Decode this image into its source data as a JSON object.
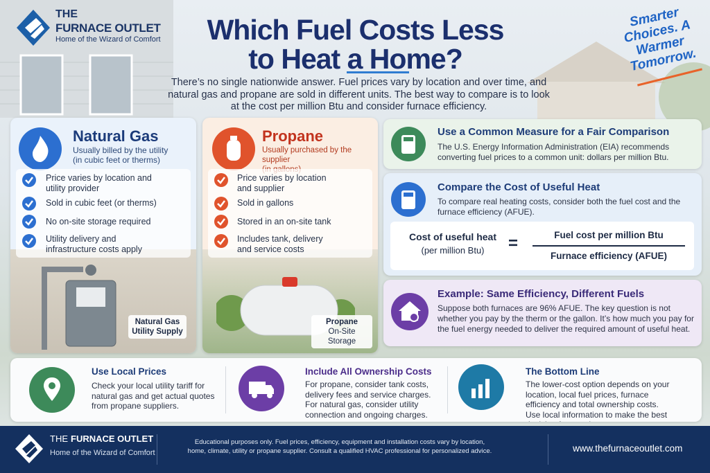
{
  "brand": {
    "the": "THE",
    "name": "FURNACE OUTLET",
    "tagline": "Home of the Wizard of Comfort"
  },
  "title": [
    "Which Fuel Costs Less",
    "to Heat a Home?"
  ],
  "intro": "There’s no single nationwide answer. Fuel prices vary by location and over time, and natural gas and propane are sold in different units. The best way to compare is to look at the cost per million Btu and consider furnace efficiency.",
  "slogan": [
    "Smarter",
    "Choices.",
    "A Warmer",
    "Tomorrow."
  ],
  "fuels": [
    {
      "title": "Natural Gas",
      "subtitle": [
        "Usually billed by the utility",
        "(in cubic feet or therms)"
      ],
      "items": [
        "Price varies by location and utility provider",
        "Sold in cubic feet (or therms)",
        "No on-site storage required",
        "Utility delivery and infrastructure costs apply"
      ],
      "photo_label": [
        "Natural Gas",
        "Utility Supply"
      ]
    },
    {
      "title": "Propane",
      "subtitle": [
        "Usually purchased by the supplier",
        "(in gallons)"
      ],
      "items": [
        "Price varies by location and supplier",
        "Sold in gallons",
        "Stored in an on-site tank",
        "Includes tank, delivery and service costs"
      ],
      "photo_label": [
        "Propane",
        "On-Site Storage"
      ]
    }
  ],
  "cards": [
    {
      "title": "Use a Common Measure for a Fair Comparison",
      "text": "The U.S. Energy Information Administration (EIA) recommends converting fuel prices to a common unit: dollars per million Btu."
    },
    {
      "title": "Compare the Cost of Useful Heat",
      "text": "To compare real heating costs, consider both the fuel cost and the furnace efficiency (AFUE)."
    },
    {
      "title": "Example: Same Efficiency, Different Fuels",
      "text": "Suppose both furnaces are 96% AFUE. The key question is not whether you pay by the therm or the gallon. It’s how much you pay for the fuel energy needed to deliver the required amount of useful heat."
    }
  ],
  "formula": {
    "left": "Cost of useful heat",
    "left_sub": "(per million Btu)",
    "equals": "=",
    "numerator": "Fuel cost per million Btu",
    "denominator": "Furnace efficiency (AFUE)"
  },
  "tips": [
    {
      "title": "Use Local Prices",
      "text": "Check your local utility tariff for natural gas and get actual quotes from propane suppliers."
    },
    {
      "title": "Include All Ownership Costs",
      "text": "For propane, consider tank costs, delivery fees and service charges. For natural gas, consider utility connection and ongoing charges."
    },
    {
      "title": "The Bottom Line",
      "text": "The lower-cost option depends on your location, local fuel prices, furnace efficiency and total ownership costs. Use local information to make the best decision for your home."
    }
  ],
  "footer": {
    "the": "THE",
    "name": "FURNACE OUTLET",
    "tagline": "Home of the Wizard of Comfort",
    "disclaimer": "Educational purposes only. Fuel prices, efficiency, equipment and installation costs vary by location, home, climate, utility or propane supplier. Consult a qualified HVAC professional for personalized advice.",
    "url": "www.thefurnaceoutlet.com"
  }
}
